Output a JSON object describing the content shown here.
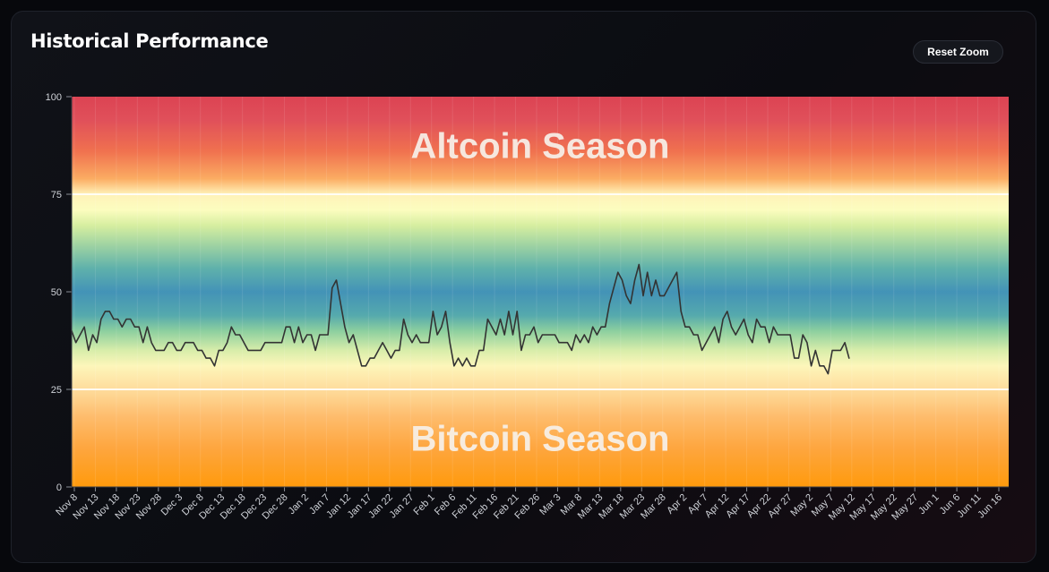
{
  "header": {
    "title": "Historical Performance",
    "reset_label": "Reset Zoom"
  },
  "chart_data": {
    "type": "line",
    "title": "Historical Performance",
    "xlabel": "",
    "ylabel": "",
    "ylim": [
      0,
      100
    ],
    "y_ticks": [
      0,
      25,
      50,
      75,
      100
    ],
    "x_ticks": [
      "Nov 8",
      "Nov 13",
      "Nov 18",
      "Nov 23",
      "Nov 28",
      "Dec 3",
      "Dec 8",
      "Dec 13",
      "Dec 18",
      "Dec 23",
      "Dec 28",
      "Jan 2",
      "Jan 7",
      "Jan 12",
      "Jan 17",
      "Jan 22",
      "Jan 27",
      "Feb 1",
      "Feb 6",
      "Feb 11",
      "Feb 16",
      "Feb 21",
      "Feb 26",
      "Mar 3",
      "Mar 8",
      "Mar 13",
      "Mar 18",
      "Mar 23",
      "Mar 28",
      "Apr 2",
      "Apr 7",
      "Apr 12",
      "Apr 17",
      "Apr 22",
      "Apr 27",
      "May 2",
      "May 7",
      "May 12",
      "May 17",
      "May 22",
      "May 27",
      "Jun 1",
      "Jun 6",
      "Jun 11",
      "Jun 16"
    ],
    "grid": true,
    "zones": {
      "altcoin_label": "Altcoin Season",
      "bitcoin_label": "Bitcoin Season",
      "upper_threshold": 75,
      "lower_threshold": 25
    },
    "series": [
      {
        "color": "#333333",
        "values": [
          40,
          37,
          39,
          41,
          35,
          39,
          37,
          43,
          45,
          45,
          43,
          43,
          41,
          43,
          43,
          41,
          41,
          37,
          41,
          37,
          35,
          35,
          35,
          37,
          37,
          35,
          35,
          37,
          37,
          37,
          35,
          35,
          33,
          33,
          31,
          35,
          35,
          37,
          41,
          39,
          39,
          37,
          35,
          35,
          35,
          35,
          37,
          37,
          37,
          37,
          37,
          41,
          41,
          37,
          41,
          37,
          39,
          39,
          35,
          39,
          39,
          39,
          51,
          53,
          47,
          41,
          37,
          39,
          35,
          31,
          31,
          33,
          33,
          35,
          37,
          35,
          33,
          35,
          35,
          43,
          39,
          37,
          39,
          37,
          37,
          37,
          45,
          39,
          41,
          45,
          37,
          31,
          33,
          31,
          33,
          31,
          31,
          35,
          35,
          43,
          41,
          39,
          43,
          39,
          45,
          39,
          45,
          35,
          39,
          39,
          41,
          37,
          39,
          39,
          39,
          39,
          37,
          37,
          37,
          35,
          39,
          37,
          39,
          37,
          41,
          39,
          41,
          41,
          47,
          51,
          55,
          53,
          49,
          47,
          53,
          57,
          49,
          55,
          49,
          53,
          49,
          49,
          51,
          53,
          55,
          45,
          41,
          41,
          39,
          39,
          35,
          37,
          39,
          41,
          37,
          43,
          45,
          41,
          39,
          41,
          43,
          39,
          37,
          43,
          41,
          41,
          37,
          41,
          39,
          39,
          39,
          39,
          33,
          33,
          39,
          37,
          31,
          35,
          31,
          31,
          29,
          35,
          35,
          35,
          37,
          33
        ]
      }
    ]
  }
}
